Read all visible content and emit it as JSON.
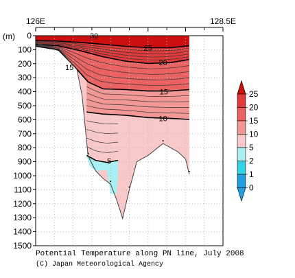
{
  "chart_data": {
    "type": "heatmap",
    "title": "Potential Temperature along PN line, July 2008",
    "credit": "(C) Japan Meteorological Agency",
    "ylabel": "(m)",
    "xlim": [
      126,
      128.5
    ],
    "ylim": [
      1500,
      0
    ],
    "x_tick_labels": [
      "126E",
      "128.5E"
    ],
    "y_ticks": [
      0,
      100,
      200,
      300,
      400,
      500,
      600,
      700,
      800,
      900,
      1000,
      1100,
      1200,
      1300,
      1400,
      1500
    ],
    "colorbar": {
      "levels": [
        0,
        1,
        2,
        5,
        10,
        15,
        20,
        25
      ],
      "colors": [
        "#1f9fe0",
        "#33d3e3",
        "#a9f0f3",
        "#f9c8c8",
        "#f39696",
        "#ea6262",
        "#e03a3a",
        "#cc1010"
      ],
      "extend": "both"
    },
    "contour_labels": [
      {
        "value": "30",
        "x": 126.78,
        "depth": 0
      },
      {
        "value": "25",
        "x": 127.5,
        "depth": 85
      },
      {
        "value": "20",
        "x": 127.7,
        "depth": 190
      },
      {
        "value": "15",
        "x": 126.45,
        "depth": 225
      },
      {
        "value": "15",
        "x": 127.71,
        "depth": 400
      },
      {
        "value": "10",
        "x": 127.7,
        "depth": 590
      },
      {
        "value": "5",
        "x": 126.98,
        "depth": 895
      }
    ],
    "isotherms": [
      {
        "value": 25,
        "points": [
          [
            126.0,
            35
          ],
          [
            126.3,
            38
          ],
          [
            126.6,
            48
          ],
          [
            126.9,
            62
          ],
          [
            127.2,
            76
          ],
          [
            127.5,
            86
          ],
          [
            127.8,
            86
          ],
          [
            128.05,
            72
          ]
        ]
      },
      {
        "value": 20,
        "points": [
          [
            126.0,
            62
          ],
          [
            126.3,
            72
          ],
          [
            126.6,
            108
          ],
          [
            126.9,
            150
          ],
          [
            127.2,
            182
          ],
          [
            127.5,
            198
          ],
          [
            127.8,
            192
          ],
          [
            128.05,
            170
          ]
        ]
      },
      {
        "value": 15,
        "points": [
          [
            126.0,
            75
          ],
          [
            126.3,
            100
          ],
          [
            126.5,
            210
          ],
          [
            126.7,
            330
          ],
          [
            126.9,
            380
          ],
          [
            127.2,
            385
          ],
          [
            127.5,
            395
          ],
          [
            127.8,
            395
          ],
          [
            128.05,
            385
          ]
        ]
      },
      {
        "value": 10,
        "points": [
          [
            126.68,
            545
          ],
          [
            126.9,
            560
          ],
          [
            127.2,
            568
          ],
          [
            127.5,
            585
          ],
          [
            127.8,
            590
          ],
          [
            128.05,
            598
          ]
        ]
      },
      {
        "value": 5,
        "points": [
          [
            126.68,
            855
          ],
          [
            126.8,
            890
          ],
          [
            126.95,
            905
          ],
          [
            127.1,
            890
          ]
        ]
      }
    ],
    "bottom_topography": [
      [
        126.0,
        55
      ],
      [
        126.3,
        90
      ],
      [
        126.55,
        240
      ],
      [
        126.62,
        430
      ],
      [
        126.7,
        860
      ],
      [
        126.8,
        965
      ],
      [
        126.9,
        1020
      ],
      [
        127.0,
        1060
      ],
      [
        127.08,
        1170
      ],
      [
        127.16,
        1305
      ],
      [
        127.25,
        1100
      ],
      [
        127.35,
        900
      ],
      [
        127.5,
        855
      ],
      [
        127.7,
        770
      ],
      [
        127.9,
        830
      ],
      [
        128.0,
        880
      ],
      [
        128.05,
        990
      ]
    ]
  }
}
